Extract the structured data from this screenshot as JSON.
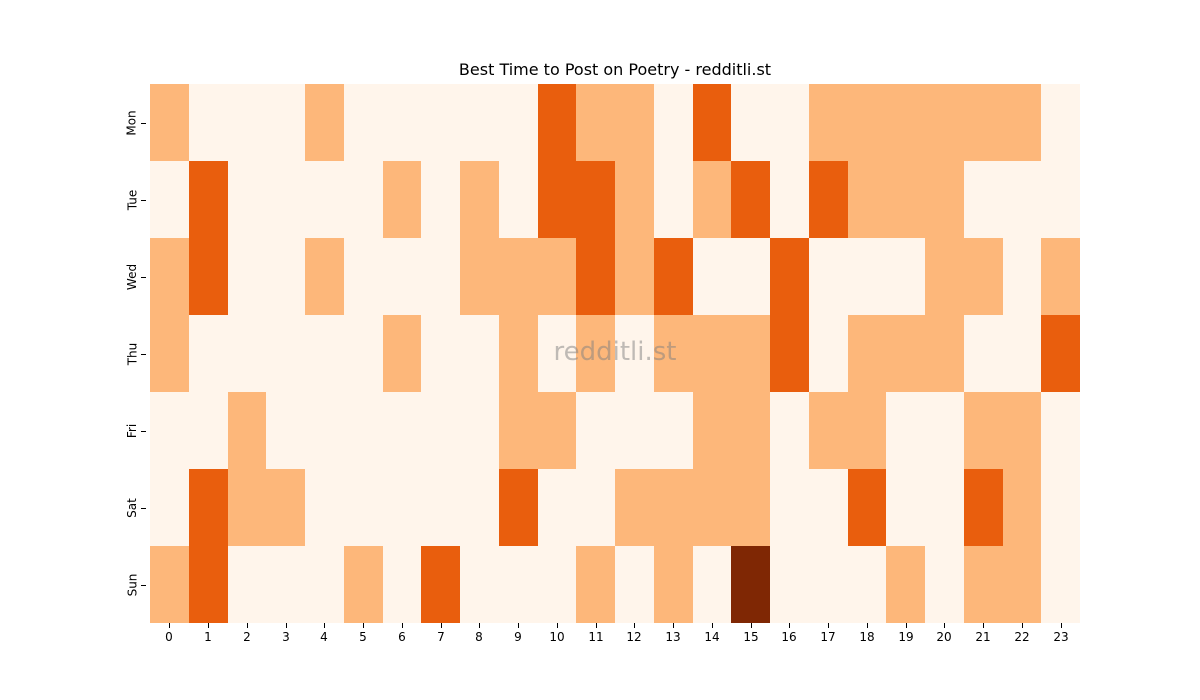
{
  "chart_data": {
    "type": "heatmap",
    "title": "Best Time to Post on Poetry - redditli.st",
    "xlabel": "",
    "ylabel": "",
    "x": [
      "0",
      "1",
      "2",
      "3",
      "4",
      "5",
      "6",
      "7",
      "8",
      "9",
      "10",
      "11",
      "12",
      "13",
      "14",
      "15",
      "16",
      "17",
      "18",
      "19",
      "20",
      "21",
      "22",
      "23"
    ],
    "y": [
      "Mon",
      "Tue",
      "Wed",
      "Thu",
      "Fri",
      "Sat",
      "Sun"
    ],
    "values": [
      [
        1,
        0,
        0,
        0,
        1,
        0,
        0,
        0,
        0,
        0,
        2,
        1,
        1,
        0,
        2,
        0,
        0,
        1,
        1,
        1,
        1,
        1,
        1,
        0
      ],
      [
        0,
        2,
        0,
        0,
        0,
        0,
        1,
        0,
        1,
        0,
        2,
        2,
        1,
        0,
        1,
        2,
        0,
        2,
        1,
        1,
        1,
        0,
        0,
        0
      ],
      [
        1,
        2,
        0,
        0,
        1,
        0,
        0,
        0,
        1,
        1,
        1,
        2,
        1,
        2,
        0,
        0,
        2,
        0,
        0,
        0,
        1,
        1,
        0,
        1
      ],
      [
        1,
        0,
        0,
        0,
        0,
        0,
        1,
        0,
        0,
        1,
        0,
        1,
        0,
        1,
        1,
        1,
        2,
        0,
        1,
        1,
        1,
        0,
        0,
        2
      ],
      [
        0,
        0,
        1,
        0,
        0,
        0,
        0,
        0,
        0,
        1,
        1,
        0,
        0,
        0,
        1,
        1,
        0,
        1,
        1,
        0,
        0,
        1,
        1,
        0
      ],
      [
        0,
        2,
        1,
        1,
        0,
        0,
        0,
        0,
        0,
        2,
        0,
        0,
        1,
        1,
        1,
        1,
        0,
        0,
        2,
        0,
        0,
        2,
        1,
        0
      ],
      [
        1,
        2,
        0,
        0,
        0,
        1,
        0,
        2,
        0,
        0,
        0,
        1,
        0,
        1,
        0,
        3,
        0,
        0,
        0,
        1,
        0,
        1,
        1,
        0
      ]
    ],
    "value_scale_note": "relative intensity levels estimated from color (0 = lightest, 3 = darkest)",
    "colormap": "Oranges",
    "colors": [
      "#fff5eb",
      "#fdb77a",
      "#e95e0d",
      "#7f2704"
    ],
    "colorbar": false,
    "grid": false,
    "watermark": "redditli.st"
  }
}
